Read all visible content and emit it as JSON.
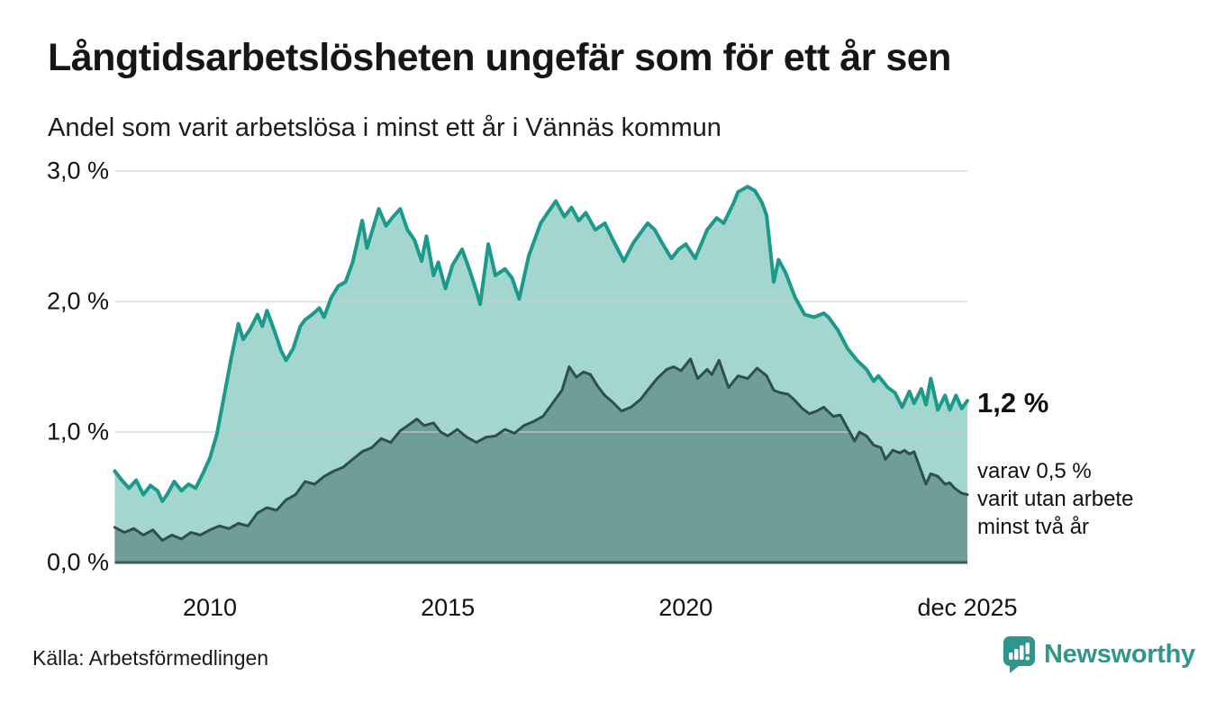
{
  "header": {
    "title": "Långtidsarbetslösheten ungefär som för ett år sen",
    "subtitle": "Andel som varit arbetslösa i minst ett år i Vännäs kommun"
  },
  "chart_data": {
    "type": "area",
    "title": "Andel som varit arbetslösa i minst ett år i Vännäs kommun",
    "xlabel": "",
    "ylabel": "",
    "unit": "%",
    "xlim": [
      2008.0,
      2025.92
    ],
    "ylim": [
      0,
      3
    ],
    "grid": "horizontal",
    "legend_position": "none",
    "x_ticks": [
      {
        "year": 2010,
        "label": "2010"
      },
      {
        "year": 2015,
        "label": "2015"
      },
      {
        "year": 2020,
        "label": "2020"
      },
      {
        "year": 2025.92,
        "label": "dec 2025"
      }
    ],
    "y_ticks": [
      {
        "value": 3,
        "label": "3,0 %"
      },
      {
        "value": 2,
        "label": "2,0 %"
      },
      {
        "value": 1,
        "label": "1,0 %"
      },
      {
        "value": 0,
        "label": "0,0 %"
      }
    ],
    "series": [
      {
        "name": "Andel arbetslösa minst ett år",
        "line_color": "#1b9a8b",
        "fill_color": "#a2d6cf",
        "line_width": 4,
        "end_value_pct": 1.2,
        "points": [
          [
            2008.0,
            0.7
          ],
          [
            2008.15,
            0.63
          ],
          [
            2008.3,
            0.57
          ],
          [
            2008.45,
            0.63
          ],
          [
            2008.6,
            0.52
          ],
          [
            2008.75,
            0.59
          ],
          [
            2008.9,
            0.55
          ],
          [
            2009.0,
            0.47
          ],
          [
            2009.1,
            0.52
          ],
          [
            2009.25,
            0.62
          ],
          [
            2009.4,
            0.55
          ],
          [
            2009.55,
            0.6
          ],
          [
            2009.7,
            0.57
          ],
          [
            2009.85,
            0.68
          ],
          [
            2010.0,
            0.8
          ],
          [
            2010.15,
            0.99
          ],
          [
            2010.3,
            1.28
          ],
          [
            2010.45,
            1.57
          ],
          [
            2010.6,
            1.83
          ],
          [
            2010.7,
            1.71
          ],
          [
            2010.85,
            1.79
          ],
          [
            2011.0,
            1.9
          ],
          [
            2011.1,
            1.81
          ],
          [
            2011.2,
            1.93
          ],
          [
            2011.35,
            1.78
          ],
          [
            2011.5,
            1.62
          ],
          [
            2011.6,
            1.55
          ],
          [
            2011.75,
            1.64
          ],
          [
            2011.9,
            1.81
          ],
          [
            2012.0,
            1.86
          ],
          [
            2012.15,
            1.9
          ],
          [
            2012.3,
            1.95
          ],
          [
            2012.4,
            1.88
          ],
          [
            2012.55,
            2.03
          ],
          [
            2012.7,
            2.12
          ],
          [
            2012.85,
            2.15
          ],
          [
            2013.0,
            2.3
          ],
          [
            2013.2,
            2.62
          ],
          [
            2013.3,
            2.41
          ],
          [
            2013.55,
            2.71
          ],
          [
            2013.7,
            2.58
          ],
          [
            2013.85,
            2.65
          ],
          [
            2014.0,
            2.71
          ],
          [
            2014.15,
            2.55
          ],
          [
            2014.3,
            2.47
          ],
          [
            2014.45,
            2.31
          ],
          [
            2014.55,
            2.5
          ],
          [
            2014.7,
            2.2
          ],
          [
            2014.8,
            2.3
          ],
          [
            2014.95,
            2.1
          ],
          [
            2015.1,
            2.28
          ],
          [
            2015.3,
            2.4
          ],
          [
            2015.45,
            2.25
          ],
          [
            2015.6,
            2.08
          ],
          [
            2015.68,
            1.98
          ],
          [
            2015.85,
            2.44
          ],
          [
            2016.0,
            2.2
          ],
          [
            2016.2,
            2.25
          ],
          [
            2016.35,
            2.18
          ],
          [
            2016.5,
            2.02
          ],
          [
            2016.7,
            2.35
          ],
          [
            2016.95,
            2.6
          ],
          [
            2017.1,
            2.68
          ],
          [
            2017.27,
            2.77
          ],
          [
            2017.45,
            2.65
          ],
          [
            2017.6,
            2.72
          ],
          [
            2017.75,
            2.62
          ],
          [
            2017.9,
            2.68
          ],
          [
            2018.1,
            2.55
          ],
          [
            2018.3,
            2.6
          ],
          [
            2018.46,
            2.48
          ],
          [
            2018.7,
            2.31
          ],
          [
            2018.9,
            2.45
          ],
          [
            2019.2,
            2.6
          ],
          [
            2019.35,
            2.55
          ],
          [
            2019.5,
            2.45
          ],
          [
            2019.7,
            2.33
          ],
          [
            2019.85,
            2.4
          ],
          [
            2020.0,
            2.44
          ],
          [
            2020.2,
            2.33
          ],
          [
            2020.45,
            2.55
          ],
          [
            2020.65,
            2.64
          ],
          [
            2020.8,
            2.6
          ],
          [
            2021.0,
            2.75
          ],
          [
            2021.1,
            2.84
          ],
          [
            2021.3,
            2.88
          ],
          [
            2021.45,
            2.85
          ],
          [
            2021.6,
            2.76
          ],
          [
            2021.7,
            2.66
          ],
          [
            2021.85,
            2.15
          ],
          [
            2021.95,
            2.32
          ],
          [
            2022.1,
            2.22
          ],
          [
            2022.3,
            2.03
          ],
          [
            2022.5,
            1.9
          ],
          [
            2022.7,
            1.88
          ],
          [
            2022.9,
            1.91
          ],
          [
            2023.0,
            1.88
          ],
          [
            2023.2,
            1.78
          ],
          [
            2023.4,
            1.64
          ],
          [
            2023.6,
            1.55
          ],
          [
            2023.8,
            1.48
          ],
          [
            2023.95,
            1.39
          ],
          [
            2024.05,
            1.43
          ],
          [
            2024.25,
            1.34
          ],
          [
            2024.4,
            1.3
          ],
          [
            2024.55,
            1.19
          ],
          [
            2024.7,
            1.31
          ],
          [
            2024.8,
            1.22
          ],
          [
            2024.95,
            1.33
          ],
          [
            2025.05,
            1.21
          ],
          [
            2025.15,
            1.41
          ],
          [
            2025.3,
            1.17
          ],
          [
            2025.45,
            1.28
          ],
          [
            2025.55,
            1.17
          ],
          [
            2025.68,
            1.28
          ],
          [
            2025.8,
            1.18
          ],
          [
            2025.92,
            1.24
          ]
        ]
      },
      {
        "name": "Andel arbetslösa minst två år",
        "line_color": "#2f4f4b",
        "fill_color": "#6f9d98",
        "line_width": 3,
        "end_value_pct": 0.5,
        "points": [
          [
            2008.0,
            0.27
          ],
          [
            2008.2,
            0.23
          ],
          [
            2008.4,
            0.26
          ],
          [
            2008.6,
            0.21
          ],
          [
            2008.8,
            0.25
          ],
          [
            2009.0,
            0.17
          ],
          [
            2009.2,
            0.21
          ],
          [
            2009.4,
            0.18
          ],
          [
            2009.6,
            0.23
          ],
          [
            2009.8,
            0.21
          ],
          [
            2010.0,
            0.25
          ],
          [
            2010.2,
            0.28
          ],
          [
            2010.4,
            0.26
          ],
          [
            2010.6,
            0.3
          ],
          [
            2010.8,
            0.28
          ],
          [
            2011.0,
            0.38
          ],
          [
            2011.2,
            0.42
          ],
          [
            2011.4,
            0.4
          ],
          [
            2011.6,
            0.48
          ],
          [
            2011.8,
            0.52
          ],
          [
            2012.0,
            0.62
          ],
          [
            2012.2,
            0.6
          ],
          [
            2012.4,
            0.66
          ],
          [
            2012.6,
            0.7
          ],
          [
            2012.8,
            0.73
          ],
          [
            2013.0,
            0.79
          ],
          [
            2013.2,
            0.85
          ],
          [
            2013.4,
            0.88
          ],
          [
            2013.6,
            0.95
          ],
          [
            2013.8,
            0.92
          ],
          [
            2014.0,
            1.01
          ],
          [
            2014.2,
            1.06
          ],
          [
            2014.35,
            1.1
          ],
          [
            2014.5,
            1.05
          ],
          [
            2014.7,
            1.07
          ],
          [
            2014.85,
            1.0
          ],
          [
            2015.0,
            0.97
          ],
          [
            2015.2,
            1.02
          ],
          [
            2015.4,
            0.96
          ],
          [
            2015.6,
            0.92
          ],
          [
            2015.8,
            0.96
          ],
          [
            2016.0,
            0.97
          ],
          [
            2016.2,
            1.02
          ],
          [
            2016.4,
            0.99
          ],
          [
            2016.6,
            1.05
          ],
          [
            2016.8,
            1.08
          ],
          [
            2017.0,
            1.12
          ],
          [
            2017.2,
            1.22
          ],
          [
            2017.4,
            1.32
          ],
          [
            2017.55,
            1.5
          ],
          [
            2017.7,
            1.42
          ],
          [
            2017.85,
            1.46
          ],
          [
            2018.0,
            1.44
          ],
          [
            2018.15,
            1.35
          ],
          [
            2018.3,
            1.28
          ],
          [
            2018.46,
            1.23
          ],
          [
            2018.65,
            1.16
          ],
          [
            2018.85,
            1.19
          ],
          [
            2019.05,
            1.25
          ],
          [
            2019.2,
            1.32
          ],
          [
            2019.4,
            1.41
          ],
          [
            2019.6,
            1.48
          ],
          [
            2019.75,
            1.5
          ],
          [
            2019.9,
            1.47
          ],
          [
            2020.1,
            1.56
          ],
          [
            2020.25,
            1.41
          ],
          [
            2020.45,
            1.48
          ],
          [
            2020.55,
            1.44
          ],
          [
            2020.7,
            1.55
          ],
          [
            2020.9,
            1.34
          ],
          [
            2021.1,
            1.43
          ],
          [
            2021.3,
            1.41
          ],
          [
            2021.5,
            1.49
          ],
          [
            2021.7,
            1.43
          ],
          [
            2021.85,
            1.32
          ],
          [
            2022.0,
            1.3
          ],
          [
            2022.15,
            1.29
          ],
          [
            2022.3,
            1.24
          ],
          [
            2022.45,
            1.18
          ],
          [
            2022.6,
            1.14
          ],
          [
            2022.75,
            1.16
          ],
          [
            2022.9,
            1.19
          ],
          [
            2023.1,
            1.12
          ],
          [
            2023.25,
            1.13
          ],
          [
            2023.4,
            1.03
          ],
          [
            2023.55,
            0.93
          ],
          [
            2023.65,
            1.0
          ],
          [
            2023.8,
            0.97
          ],
          [
            2023.95,
            0.9
          ],
          [
            2024.1,
            0.88
          ],
          [
            2024.2,
            0.79
          ],
          [
            2024.35,
            0.86
          ],
          [
            2024.5,
            0.84
          ],
          [
            2024.6,
            0.86
          ],
          [
            2024.7,
            0.83
          ],
          [
            2024.8,
            0.85
          ],
          [
            2024.9,
            0.75
          ],
          [
            2025.05,
            0.6
          ],
          [
            2025.15,
            0.68
          ],
          [
            2025.3,
            0.66
          ],
          [
            2025.45,
            0.6
          ],
          [
            2025.55,
            0.61
          ],
          [
            2025.65,
            0.57
          ],
          [
            2025.8,
            0.53
          ],
          [
            2025.92,
            0.52
          ]
        ]
      }
    ],
    "annotations": {
      "end_value": "1,2 %",
      "secondary": "varav 0,5 %\nvarit utan arbete\nminst två år"
    }
  },
  "footer": {
    "source": "Källa: Arbetsförmedlingen",
    "brand": "Newsworthy"
  },
  "colors": {
    "accent": "#1b9a8b",
    "fill_light": "#a2d6cf",
    "fill_dark": "#6f9d98",
    "line_dark": "#2f4f4b",
    "grid": "#c9cfce",
    "axis": "#3d5a55",
    "text": "#1a1a1a",
    "brand": "#2e968c"
  }
}
